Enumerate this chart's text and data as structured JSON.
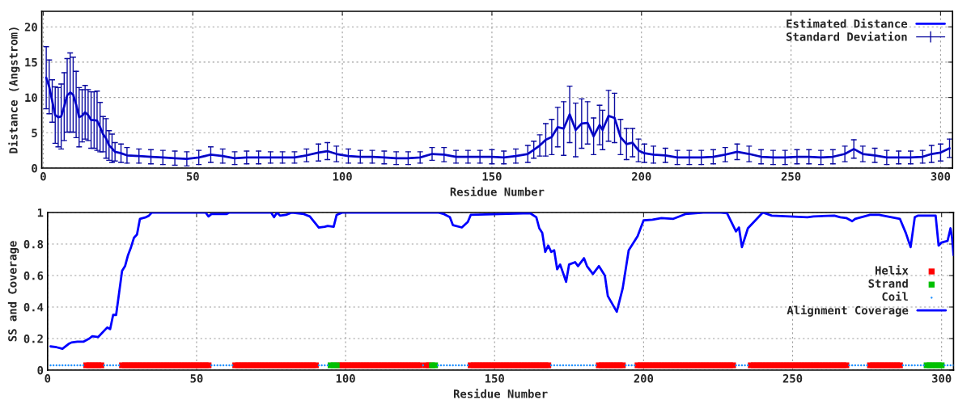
{
  "chart_data": [
    {
      "type": "line",
      "xlabel": "Residue Number",
      "ylabel": "Distance (Angstrom)",
      "xlim": [
        -0.5,
        304
      ],
      "xticks": [
        0,
        50,
        100,
        150,
        200,
        250,
        300
      ],
      "ylim": [
        0,
        22.2
      ],
      "yticks": [
        0,
        5,
        10,
        15,
        20
      ],
      "grid": true,
      "legend": "top right",
      "x": [
        1,
        2,
        3,
        4,
        5,
        6,
        7,
        8,
        9,
        10,
        11,
        12,
        13,
        14,
        15,
        16,
        17,
        18,
        19,
        20,
        21,
        22,
        23,
        24,
        26,
        28,
        32,
        36,
        40,
        44,
        48,
        52,
        56,
        60,
        64,
        68,
        72,
        76,
        80,
        84,
        88,
        92,
        95,
        98,
        102,
        106,
        110,
        114,
        118,
        122,
        126,
        130,
        134,
        138,
        142,
        146,
        150,
        154,
        158,
        162,
        164,
        166,
        168,
        170,
        172,
        174,
        176,
        178,
        180,
        182,
        184,
        186,
        187,
        189,
        191,
        193,
        195,
        197,
        199,
        201,
        204,
        208,
        212,
        216,
        220,
        224,
        228,
        232,
        236,
        240,
        244,
        248,
        252,
        256,
        260,
        264,
        268,
        271,
        274,
        278,
        282,
        286,
        290,
        294,
        297,
        300,
        303
      ],
      "series": [
        {
          "name": "Estimated Distance",
          "color": "#0000ff",
          "values": [
            12.8,
            11.5,
            9.5,
            7.5,
            7.2,
            7.3,
            8.7,
            10.3,
            10.7,
            10.4,
            9,
            7.2,
            7.4,
            7.9,
            7.5,
            6.8,
            6.8,
            6.7,
            5.8,
            4.8,
            4.2,
            3.2,
            2.8,
            2.3,
            2.1,
            1.8,
            1.7,
            1.6,
            1.5,
            1.4,
            1.3,
            1.5,
            1.9,
            1.7,
            1.4,
            1.5,
            1.5,
            1.5,
            1.5,
            1.5,
            1.8,
            2.2,
            2.4,
            2,
            1.7,
            1.6,
            1.6,
            1.5,
            1.4,
            1.4,
            1.5,
            2,
            1.9,
            1.6,
            1.6,
            1.6,
            1.6,
            1.5,
            1.7,
            2,
            2.6,
            3.2,
            4,
            4.4,
            5.8,
            5.6,
            7.6,
            5.4,
            6.3,
            6.4,
            4.5,
            6.1,
            5.4,
            7.4,
            7.1,
            4.4,
            3.4,
            3.6,
            2.5,
            2.1,
            1.9,
            1.8,
            1.5,
            1.5,
            1.5,
            1.6,
            1.9,
            2.3,
            2,
            1.6,
            1.5,
            1.5,
            1.6,
            1.6,
            1.5,
            1.6,
            2,
            2.7,
            2,
            1.8,
            1.5,
            1.5,
            1.5,
            1.6,
            2,
            2.2,
            2.8
          ]
        },
        {
          "name": "Standard Deviation",
          "color": "#0c0ca0",
          "values": [
            12.8,
            11.5,
            9.5,
            7.5,
            7.2,
            7.3,
            8.7,
            10.3,
            10.7,
            10.4,
            9,
            7.2,
            7.4,
            7.9,
            7.5,
            6.8,
            6.8,
            6.7,
            5.8,
            4.8,
            4.2,
            3.2,
            2.8,
            2.3,
            2.1,
            1.8,
            1.7,
            1.6,
            1.5,
            1.4,
            1.3,
            1.5,
            1.9,
            1.7,
            1.4,
            1.5,
            1.5,
            1.5,
            1.5,
            1.5,
            1.8,
            2.2,
            2.4,
            2,
            1.7,
            1.6,
            1.6,
            1.5,
            1.4,
            1.4,
            1.5,
            2,
            1.9,
            1.6,
            1.6,
            1.6,
            1.6,
            1.5,
            1.7,
            2,
            2.6,
            3.2,
            4,
            4.4,
            5.8,
            5.6,
            7.6,
            5.4,
            6.3,
            6.4,
            4.5,
            6.1,
            5.4,
            7.4,
            7.1,
            4.4,
            3.4,
            3.6,
            2.5,
            2.1,
            1.9,
            1.8,
            1.5,
            1.5,
            1.5,
            1.6,
            1.9,
            2.3,
            2,
            1.6,
            1.5,
            1.5,
            1.6,
            1.6,
            1.5,
            1.6,
            2,
            2.7,
            2,
            1.8,
            1.5,
            1.5,
            1.5,
            1.6,
            2,
            2.2,
            2.8
          ],
          "errors": [
            4.4,
            3.8,
            3,
            4,
            4.2,
            4.6,
            4.8,
            5.2,
            5.6,
            5.3,
            4.7,
            4.2,
            3.7,
            3.8,
            3.6,
            4,
            4,
            4.2,
            3.5,
            2.5,
            2.8,
            2.1,
            2,
            1.3,
            1.3,
            1.1,
            1,
            1,
            1,
            1,
            1,
            1,
            1.1,
            1,
            0.9,
            0.9,
            0.9,
            0.8,
            0.8,
            0.8,
            0.9,
            1.2,
            1.2,
            1.1,
            1,
            0.9,
            0.9,
            0.9,
            0.9,
            0.9,
            0.8,
            0.9,
            1,
            0.9,
            0.9,
            0.9,
            1,
            0.9,
            1,
            1.2,
            1.2,
            1.5,
            2.3,
            2.5,
            2.8,
            3.8,
            4,
            3.8,
            3.5,
            3,
            2.6,
            2.8,
            2.8,
            3.6,
            3.5,
            2.5,
            2.2,
            2,
            1.6,
            1.3,
            1.2,
            1,
            1,
            1,
            1,
            1,
            1,
            1.1,
            1.1,
            1,
            1,
            1,
            1,
            1,
            1,
            1,
            1.1,
            1.3,
            1.1,
            1,
            1,
            0.9,
            0.9,
            0.9,
            1.2,
            1.2,
            1.3
          ]
        }
      ]
    },
    {
      "type": "line",
      "xlabel": "Residue Number",
      "ylabel": "SS and Coverage",
      "xlim": [
        0,
        304
      ],
      "xticks": [
        0,
        50,
        100,
        150,
        200,
        250,
        300
      ],
      "ylim": [
        0,
        1
      ],
      "yticks": [
        0,
        0.2,
        0.4,
        0.6,
        0.8,
        1
      ],
      "grid": true,
      "legend": "right",
      "series": [
        {
          "name": "Helix",
          "type": "scatter",
          "marker": "square",
          "color": "#ff0000",
          "x": [
            13,
            14,
            15,
            16,
            17,
            18,
            25,
            26,
            27,
            28,
            29,
            30,
            31,
            32,
            33,
            34,
            35,
            36,
            37,
            38,
            39,
            40,
            41,
            42,
            43,
            44,
            45,
            46,
            47,
            48,
            49,
            50,
            51,
            52,
            53,
            54,
            63,
            64,
            65,
            66,
            67,
            68,
            69,
            70,
            71,
            72,
            73,
            74,
            75,
            76,
            77,
            78,
            79,
            80,
            81,
            82,
            83,
            84,
            85,
            86,
            87,
            88,
            89,
            90,
            98,
            99,
            100,
            101,
            102,
            103,
            104,
            105,
            106,
            107,
            108,
            109,
            110,
            111,
            112,
            113,
            114,
            115,
            116,
            117,
            118,
            119,
            120,
            121,
            122,
            123,
            124,
            125,
            127,
            128,
            142,
            143,
            144,
            145,
            146,
            147,
            148,
            149,
            150,
            151,
            152,
            153,
            154,
            155,
            156,
            157,
            158,
            159,
            160,
            161,
            162,
            163,
            164,
            165,
            166,
            167,
            168,
            185,
            186,
            187,
            188,
            189,
            190,
            191,
            192,
            193,
            198,
            199,
            200,
            201,
            202,
            203,
            204,
            205,
            206,
            207,
            208,
            209,
            210,
            211,
            212,
            213,
            214,
            215,
            216,
            217,
            218,
            219,
            220,
            221,
            222,
            223,
            224,
            225,
            226,
            227,
            228,
            229,
            230,
            236,
            237,
            238,
            239,
            240,
            241,
            242,
            243,
            244,
            245,
            246,
            247,
            248,
            249,
            250,
            251,
            252,
            253,
            254,
            255,
            256,
            257,
            258,
            259,
            260,
            261,
            262,
            263,
            264,
            265,
            266,
            267,
            268,
            276,
            277,
            278,
            279,
            280,
            281,
            282,
            283,
            284,
            285,
            286
          ],
          "values": [
            0.03,
            0.03,
            0.03,
            0.03,
            0.03,
            0.03,
            0.03,
            0.03,
            0.03,
            0.03,
            0.03,
            0.03,
            0.03,
            0.03,
            0.03,
            0.03,
            0.03,
            0.03,
            0.03,
            0.03,
            0.03,
            0.03,
            0.03,
            0.03,
            0.03,
            0.03,
            0.03,
            0.03,
            0.03,
            0.03,
            0.03,
            0.03,
            0.03,
            0.03,
            0.03,
            0.03,
            0.03,
            0.03,
            0.03,
            0.03,
            0.03,
            0.03,
            0.03,
            0.03,
            0.03,
            0.03,
            0.03,
            0.03,
            0.03,
            0.03,
            0.03,
            0.03,
            0.03,
            0.03,
            0.03,
            0.03,
            0.03,
            0.03,
            0.03,
            0.03,
            0.03,
            0.03,
            0.03,
            0.03,
            0.03,
            0.03,
            0.03,
            0.03,
            0.03,
            0.03,
            0.03,
            0.03,
            0.03,
            0.03,
            0.03,
            0.03,
            0.03,
            0.03,
            0.03,
            0.03,
            0.03,
            0.03,
            0.03,
            0.03,
            0.03,
            0.03,
            0.03,
            0.03,
            0.03,
            0.03,
            0.03,
            0.03,
            0.03,
            0.03,
            0.03,
            0.03,
            0.03,
            0.03,
            0.03,
            0.03,
            0.03,
            0.03,
            0.03,
            0.03,
            0.03,
            0.03,
            0.03,
            0.03,
            0.03,
            0.03,
            0.03,
            0.03,
            0.03,
            0.03,
            0.03,
            0.03,
            0.03,
            0.03,
            0.03,
            0.03,
            0.03,
            0.03,
            0.03,
            0.03,
            0.03,
            0.03,
            0.03,
            0.03,
            0.03,
            0.03,
            0.03,
            0.03,
            0.03,
            0.03,
            0.03,
            0.03,
            0.03,
            0.03,
            0.03,
            0.03,
            0.03,
            0.03,
            0.03,
            0.03,
            0.03,
            0.03,
            0.03,
            0.03,
            0.03,
            0.03,
            0.03,
            0.03,
            0.03,
            0.03,
            0.03,
            0.03,
            0.03,
            0.03,
            0.03,
            0.03,
            0.03,
            0.03,
            0.03,
            0.03,
            0.03,
            0.03,
            0.03,
            0.03,
            0.03,
            0.03,
            0.03,
            0.03,
            0.03,
            0.03,
            0.03,
            0.03,
            0.03,
            0.03,
            0.03,
            0.03,
            0.03,
            0.03,
            0.03,
            0.03,
            0.03,
            0.03,
            0.03,
            0.03,
            0.03,
            0.03,
            0.03,
            0.03,
            0.03,
            0.03,
            0.03,
            0.03,
            0.03,
            0.03,
            0.03,
            0.03,
            0.03,
            0.03,
            0.03,
            0.03,
            0.03,
            0.03,
            0.03
          ]
        },
        {
          "name": "Strand",
          "type": "scatter",
          "marker": "square",
          "color": "#00c000",
          "x": [
            95,
            96,
            97,
            129,
            130,
            295,
            296,
            297,
            298,
            299,
            300
          ],
          "values": [
            0.03,
            0.03,
            0.03,
            0.03,
            0.03,
            0.03,
            0.03,
            0.03,
            0.03,
            0.03,
            0.03
          ]
        },
        {
          "name": "Coil",
          "type": "scatter",
          "marker": "circle",
          "color": "#1e90ff",
          "x": [
            1,
            2,
            3,
            4,
            5,
            6,
            7,
            8,
            9,
            10,
            11,
            12,
            19,
            20,
            21,
            22,
            23,
            24,
            55,
            56,
            57,
            58,
            59,
            60,
            61,
            62,
            91,
            92,
            93,
            94,
            126,
            131,
            132,
            133,
            134,
            135,
            136,
            137,
            138,
            139,
            140,
            141,
            169,
            170,
            171,
            172,
            173,
            174,
            175,
            176,
            177,
            178,
            179,
            180,
            181,
            182,
            183,
            184,
            194,
            195,
            196,
            197,
            231,
            232,
            233,
            234,
            235,
            269,
            270,
            271,
            272,
            273,
            274,
            275,
            287,
            288,
            289,
            290,
            291,
            292,
            293,
            294,
            301,
            302,
            303,
            304
          ],
          "values": [
            0.03,
            0.03,
            0.03,
            0.03,
            0.03,
            0.03,
            0.03,
            0.03,
            0.03,
            0.03,
            0.03,
            0.03,
            0.03,
            0.03,
            0.03,
            0.03,
            0.03,
            0.03,
            0.03,
            0.03,
            0.03,
            0.03,
            0.03,
            0.03,
            0.03,
            0.03,
            0.03,
            0.03,
            0.03,
            0.03,
            0.03,
            0.03,
            0.03,
            0.03,
            0.03,
            0.03,
            0.03,
            0.03,
            0.03,
            0.03,
            0.03,
            0.03,
            0.03,
            0.03,
            0.03,
            0.03,
            0.03,
            0.03,
            0.03,
            0.03,
            0.03,
            0.03,
            0.03,
            0.03,
            0.03,
            0.03,
            0.03,
            0.03,
            0.03,
            0.03,
            0.03,
            0.03,
            0.03,
            0.03,
            0.03,
            0.03,
            0.03,
            0.03,
            0.03,
            0.03,
            0.03,
            0.03,
            0.03,
            0.03,
            0.03,
            0.03,
            0.03,
            0.03,
            0.03,
            0.03,
            0.03,
            0.03,
            0.03,
            0.03,
            0.03,
            0.03
          ]
        },
        {
          "name": "Alignment Coverage",
          "color": "#0000ff",
          "x": [
            1,
            3,
            5,
            7,
            8,
            10,
            12,
            14,
            15,
            17,
            20,
            21,
            22,
            23,
            24,
            25,
            26,
            27,
            28,
            29,
            30,
            31,
            33,
            34,
            35,
            53,
            54,
            55,
            60,
            61,
            75,
            76,
            77,
            78,
            80,
            82,
            86,
            88,
            91,
            93,
            94,
            96,
            97,
            99,
            131,
            133,
            135,
            136,
            139,
            141,
            142,
            162,
            164,
            165,
            166,
            167,
            168,
            169,
            170,
            171,
            172,
            174,
            175,
            177,
            178,
            180,
            181,
            183,
            185,
            187,
            188,
            191,
            193,
            195,
            198,
            200,
            203,
            206,
            210,
            214,
            220,
            226,
            228,
            231,
            232,
            233,
            235,
            240,
            243,
            255,
            257,
            264,
            266,
            268,
            270,
            271,
            276,
            279,
            286,
            288,
            289.6,
            291,
            292,
            298,
            299,
            300,
            302,
            303,
            303.5,
            304
          ],
          "values": [
            0.15,
            0.145,
            0.135,
            0.165,
            0.175,
            0.18,
            0.18,
            0.2,
            0.215,
            0.21,
            0.27,
            0.26,
            0.35,
            0.35,
            0.49,
            0.63,
            0.66,
            0.73,
            0.78,
            0.84,
            0.86,
            0.96,
            0.97,
            0.98,
            1,
            1,
            0.975,
            0.99,
            0.99,
            1,
            1,
            0.97,
            1,
            0.98,
            0.985,
            1,
            0.99,
            0.975,
            0.905,
            0.91,
            0.915,
            0.91,
            0.985,
            1,
            1,
            0.99,
            0.97,
            0.92,
            0.905,
            0.94,
            0.985,
            0.995,
            0.97,
            0.9,
            0.87,
            0.75,
            0.79,
            0.75,
            0.76,
            0.64,
            0.67,
            0.56,
            0.67,
            0.685,
            0.66,
            0.71,
            0.66,
            0.61,
            0.66,
            0.6,
            0.47,
            0.37,
            0.52,
            0.76,
            0.85,
            0.95,
            0.955,
            0.965,
            0.96,
            0.99,
            1,
            1,
            0.995,
            0.88,
            0.905,
            0.78,
            0.9,
            1,
            0.98,
            0.97,
            0.975,
            0.98,
            0.97,
            0.965,
            0.945,
            0.96,
            0.985,
            0.985,
            0.96,
            0.87,
            0.78,
            0.97,
            0.98,
            0.98,
            0.79,
            0.81,
            0.82,
            0.9,
            0.84,
            0.73
          ]
        }
      ]
    }
  ]
}
